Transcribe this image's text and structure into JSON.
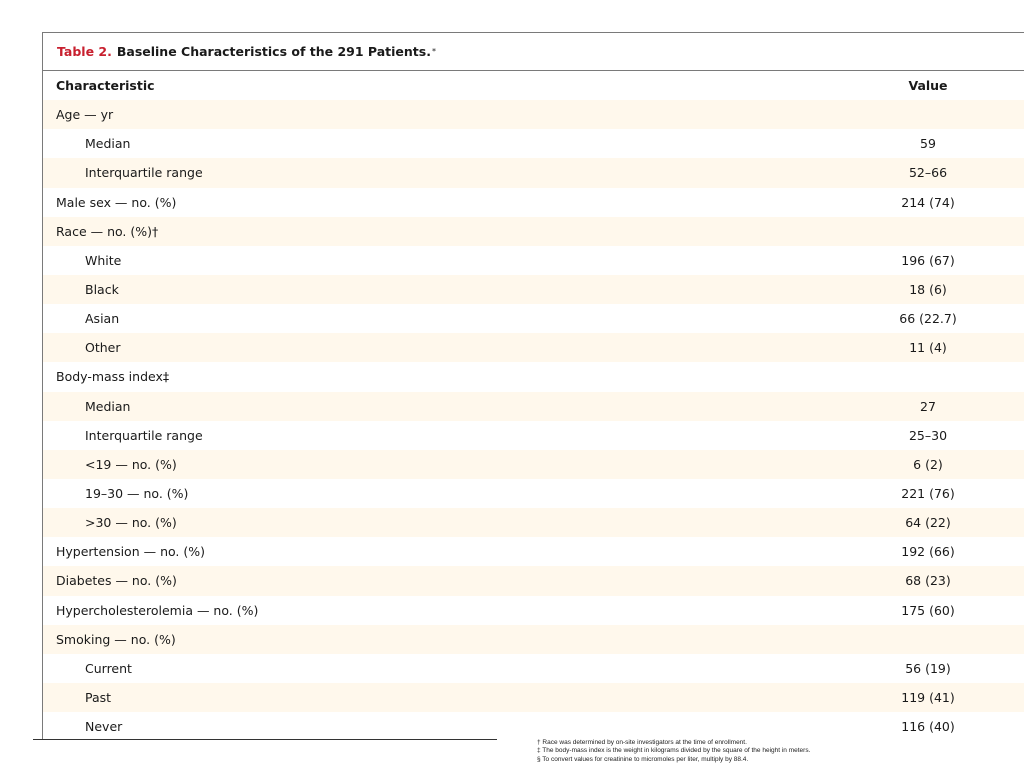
{
  "table": {
    "label": "Table 2.",
    "title": "Baseline Characteristics of the 291 Patients.",
    "title_mark": "*",
    "header": {
      "characteristic": "Characteristic",
      "value": "Value"
    },
    "rows": [
      {
        "label": "Age — yr",
        "value": "",
        "indent": false
      },
      {
        "label": "Median",
        "value": "59",
        "indent": true
      },
      {
        "label": "Interquartile range",
        "value": "52–66",
        "indent": true
      },
      {
        "label": "Male sex — no. (%)",
        "value": "214 (74)",
        "indent": false
      },
      {
        "label": "Race — no. (%)†",
        "value": "",
        "indent": false
      },
      {
        "label": "White",
        "value": "196 (67)",
        "indent": true
      },
      {
        "label": "Black",
        "value": "18 (6)",
        "indent": true
      },
      {
        "label": "Asian",
        "value": "66 (22.7)",
        "indent": true
      },
      {
        "label": "Other",
        "value": "11 (4)",
        "indent": true
      },
      {
        "label": "Body-mass index‡",
        "value": "",
        "indent": false
      },
      {
        "label": "Median",
        "value": "27",
        "indent": true
      },
      {
        "label": "Interquartile range",
        "value": "25–30",
        "indent": true
      },
      {
        "label": "<19 — no. (%)",
        "value": "6 (2)",
        "indent": true
      },
      {
        "label": "19–30 — no. (%)",
        "value": "221 (76)",
        "indent": true
      },
      {
        "label": ">30 — no. (%)",
        "value": "64 (22)",
        "indent": true
      },
      {
        "label": "Hypertension — no. (%)",
        "value": "192 (66)",
        "indent": false
      },
      {
        "label": "Diabetes — no. (%)",
        "value": "68 (23)",
        "indent": false
      },
      {
        "label": "Hypercholesterolemia — no. (%)",
        "value": "175 (60)",
        "indent": false
      },
      {
        "label": "Smoking — no. (%)",
        "value": "",
        "indent": false
      },
      {
        "label": "Current",
        "value": "56 (19)",
        "indent": true
      },
      {
        "label": "Past",
        "value": "119 (41)",
        "indent": true
      },
      {
        "label": "Never",
        "value": "116 (40)",
        "indent": true
      }
    ]
  },
  "footnotes": [
    "† Race was determined by on-site investigators at the time of enrollment.",
    "‡ The body-mass index is the weight in kilograms divided by the square of the height in meters.",
    "§ To convert values for creatinine to micromoles per liter, multiply by 88.4."
  ],
  "colors": {
    "label_red": "#c8202f",
    "row_shade": "#fff8ec",
    "rule": "#7a7a7a"
  }
}
